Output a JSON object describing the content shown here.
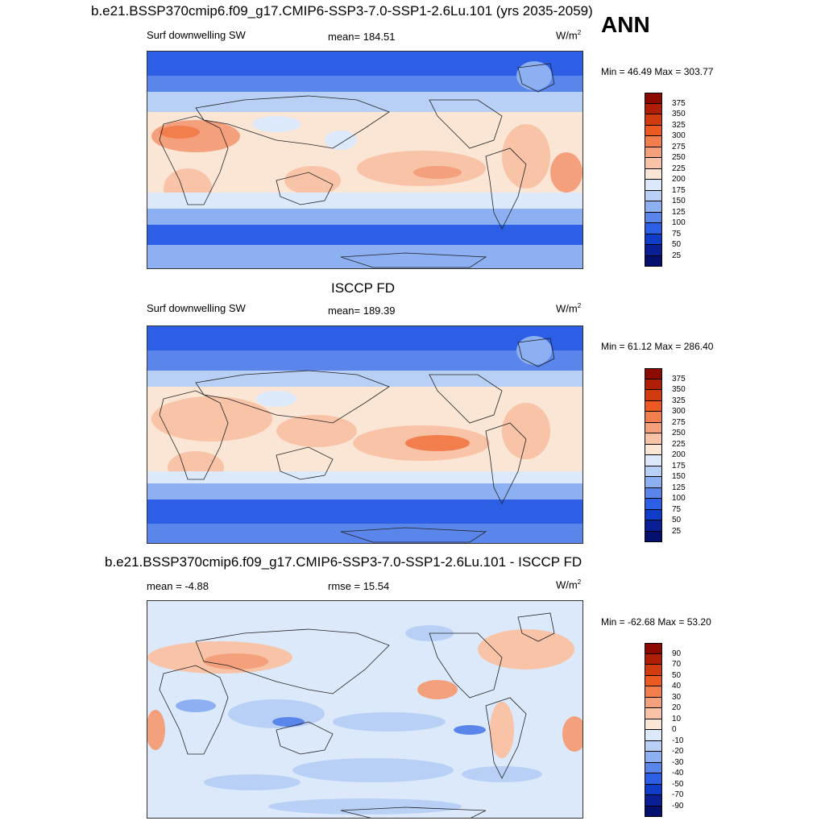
{
  "header": {
    "main_title": "b.e21.BSSP370cmip6.f09_g17.CMIP6-SSP3-7.0-SSP1-2.6Lu.101 (yrs 2035-2059)",
    "season": "ANN"
  },
  "panels": [
    {
      "title": "",
      "left_label": "Surf downwelling SW",
      "center_label": "mean= 184.51",
      "units": "W/m",
      "units_sup": "2",
      "minmax": "Min =  46.49 Max = 303.77",
      "colorbar_labels": [
        "375",
        "350",
        "325",
        "300",
        "275",
        "250",
        "225",
        "200",
        "175",
        "150",
        "125",
        "100",
        "75",
        "50",
        "25"
      ]
    },
    {
      "title": "ISCCP FD",
      "left_label": "Surf downwelling SW",
      "center_label": "mean= 189.39",
      "units": "W/m",
      "units_sup": "2",
      "minmax": "Min =  61.12 Max = 286.40",
      "colorbar_labels": [
        "375",
        "350",
        "325",
        "300",
        "275",
        "250",
        "225",
        "200",
        "175",
        "150",
        "125",
        "100",
        "75",
        "50",
        "25"
      ]
    },
    {
      "title": "b.e21.BSSP370cmip6.f09_g17.CMIP6-SSP3-7.0-SSP1-2.6Lu.101 - ISCCP FD",
      "left_label": "mean =  -4.88",
      "center_label": "rmse =  15.54",
      "units": "W/m",
      "units_sup": "2",
      "minmax": "Min = -62.68 Max =  53.20",
      "colorbar_labels": [
        "90",
        "70",
        "50",
        "40",
        "30",
        "20",
        "10",
        "0",
        "-10",
        "-20",
        "-30",
        "-40",
        "-50",
        "-70",
        "-90"
      ]
    }
  ],
  "colors": {
    "abs_scale": [
      "#8c0a00",
      "#b01e05",
      "#d23a10",
      "#ec5a22",
      "#f27e4e",
      "#f5a07c",
      "#f8c3a6",
      "#fbe6d6",
      "#dce9fb",
      "#b8d0f6",
      "#8cb0f2",
      "#5a86ec",
      "#2c5ee6",
      "#0f3cc8",
      "#0a1e96",
      "#050f6e"
    ],
    "diff_scale": [
      "#8c0a00",
      "#b01e05",
      "#d23a10",
      "#ec5a22",
      "#f27e4e",
      "#f5a07c",
      "#f8c3a6",
      "#fbe6d6",
      "#dce9fb",
      "#b8d0f6",
      "#8cb0f2",
      "#5a86ec",
      "#2c5ee6",
      "#0f3cc8",
      "#0a1e96",
      "#050f6e"
    ]
  }
}
